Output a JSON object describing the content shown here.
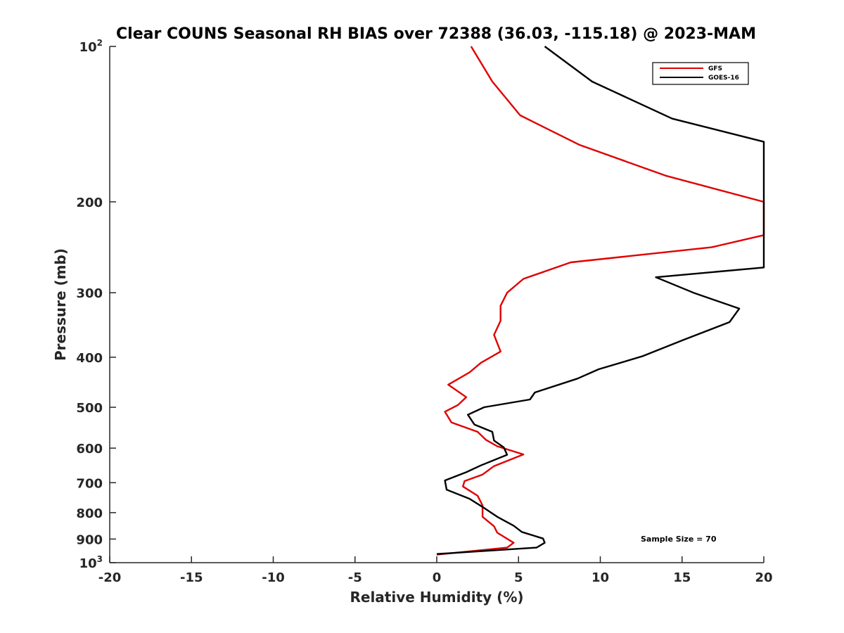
{
  "chart_data": {
    "type": "line",
    "title": "Clear COUNS Seasonal RH BIAS over 72388 (36.03, -115.18) @ 2023-MAM",
    "xlabel": "Relative Humidity (%)",
    "ylabel": "Pressure (mb)",
    "xlim": [
      -20,
      20
    ],
    "ylim": [
      100,
      1000
    ],
    "yscale": "log",
    "yreversed": true,
    "x_ticks": [
      "-20",
      "-15",
      "-10",
      "-5",
      "0",
      "5",
      "10",
      "15",
      "20"
    ],
    "y_ticks": [
      {
        "value": 100,
        "base": "10",
        "exp": "2"
      },
      {
        "value": 200,
        "label": "200"
      },
      {
        "value": 300,
        "label": "300"
      },
      {
        "value": 400,
        "label": "400"
      },
      {
        "value": 500,
        "label": "500"
      },
      {
        "value": 600,
        "label": "600"
      },
      {
        "value": 700,
        "label": "700"
      },
      {
        "value": 800,
        "label": "800"
      },
      {
        "value": 900,
        "label": "900"
      },
      {
        "value": 1000,
        "base": "10",
        "exp": "3"
      }
    ],
    "legend_position": "top-right",
    "annotation": "Sample Size = 70",
    "series": [
      {
        "name": "GFS",
        "color": "#e00000",
        "points": [
          [
            2.1,
            100
          ],
          [
            3.4,
            117
          ],
          [
            5.1,
            136
          ],
          [
            8.7,
            155
          ],
          [
            14.0,
            178
          ],
          [
            20.0,
            200
          ],
          [
            20.0,
            232
          ],
          [
            16.8,
            245
          ],
          [
            8.2,
            262
          ],
          [
            5.3,
            282
          ],
          [
            4.3,
            300
          ],
          [
            3.9,
            318
          ],
          [
            3.9,
            340
          ],
          [
            3.5,
            362
          ],
          [
            3.9,
            390
          ],
          [
            2.7,
            410
          ],
          [
            2.0,
            428
          ],
          [
            0.7,
            452
          ],
          [
            1.8,
            478
          ],
          [
            1.3,
            495
          ],
          [
            0.5,
            510
          ],
          [
            0.9,
            535
          ],
          [
            2.5,
            558
          ],
          [
            3.0,
            578
          ],
          [
            3.7,
            595
          ],
          [
            5.3,
            617
          ],
          [
            3.5,
            650
          ],
          [
            2.8,
            675
          ],
          [
            1.7,
            695
          ],
          [
            1.6,
            712
          ],
          [
            2.5,
            742
          ],
          [
            2.8,
            775
          ],
          [
            2.8,
            815
          ],
          [
            3.5,
            850
          ],
          [
            3.7,
            875
          ],
          [
            4.7,
            915
          ],
          [
            4.3,
            935
          ],
          [
            0.0,
            965
          ]
        ]
      },
      {
        "name": "GOES-16",
        "color": "#000000",
        "points": [
          [
            6.6,
            100
          ],
          [
            9.5,
            117
          ],
          [
            14.4,
            138
          ],
          [
            20.0,
            153
          ],
          [
            20.0,
            268
          ],
          [
            13.4,
            280
          ],
          [
            15.7,
            300
          ],
          [
            18.5,
            322
          ],
          [
            17.9,
            342
          ],
          [
            15.1,
            370
          ],
          [
            12.6,
            398
          ],
          [
            9.9,
            422
          ],
          [
            8.6,
            440
          ],
          [
            6.0,
            468
          ],
          [
            5.7,
            483
          ],
          [
            2.9,
            500
          ],
          [
            1.9,
            517
          ],
          [
            2.3,
            540
          ],
          [
            3.4,
            558
          ],
          [
            3.5,
            580
          ],
          [
            4.1,
            598
          ],
          [
            4.3,
            618
          ],
          [
            2.7,
            648
          ],
          [
            1.8,
            668
          ],
          [
            0.5,
            693
          ],
          [
            0.6,
            722
          ],
          [
            2.0,
            752
          ],
          [
            2.8,
            780
          ],
          [
            3.7,
            815
          ],
          [
            4.7,
            848
          ],
          [
            5.2,
            872
          ],
          [
            6.5,
            898
          ],
          [
            6.6,
            915
          ],
          [
            6.1,
            935
          ],
          [
            0.0,
            962
          ]
        ]
      }
    ]
  }
}
